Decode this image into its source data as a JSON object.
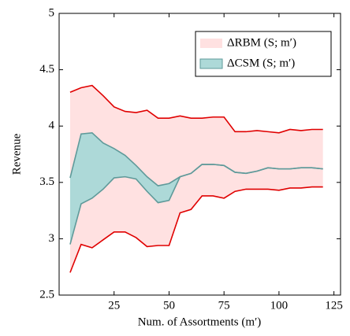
{
  "chart_data": {
    "type": "band",
    "x_label": "Num. of Assortments (m′)",
    "y_label": "Revenue",
    "x": [
      5,
      10,
      15,
      20,
      25,
      30,
      35,
      40,
      45,
      50,
      55,
      60,
      65,
      70,
      75,
      80,
      85,
      90,
      95,
      100,
      105,
      110,
      115,
      120
    ],
    "series": [
      {
        "name": "ΔRBM (S; m′)",
        "color": "#ffe1e1",
        "line_color": "#e00000",
        "upper": [
          4.3,
          4.34,
          4.36,
          4.27,
          4.17,
          4.13,
          4.12,
          4.14,
          4.07,
          4.07,
          4.09,
          4.07,
          4.07,
          4.08,
          4.08,
          3.95,
          3.95,
          3.96,
          3.95,
          3.94,
          3.97,
          3.96,
          3.97,
          3.97
        ],
        "lower": [
          2.7,
          2.95,
          2.92,
          2.99,
          3.06,
          3.06,
          3.01,
          2.93,
          2.94,
          2.94,
          3.23,
          3.26,
          3.38,
          3.38,
          3.36,
          3.42,
          3.44,
          3.44,
          3.44,
          3.43,
          3.45,
          3.45,
          3.46,
          3.46
        ]
      },
      {
        "name": "ΔCSM (S; m′)",
        "color": "#add9d8",
        "line_color": "#5f9a9a",
        "upper": [
          3.54,
          3.93,
          3.94,
          3.85,
          3.8,
          3.74,
          3.65,
          3.55,
          3.47,
          3.49,
          3.55,
          3.58,
          3.66,
          3.66,
          3.65,
          3.59,
          3.58,
          3.6,
          3.63,
          3.62,
          3.62,
          3.63,
          3.63,
          3.62
        ],
        "lower": [
          2.95,
          3.31,
          3.36,
          3.44,
          3.54,
          3.55,
          3.53,
          3.42,
          3.32,
          3.34,
          3.55,
          3.58,
          3.66,
          3.66,
          3.65,
          3.59,
          3.58,
          3.6,
          3.63,
          3.62,
          3.62,
          3.63,
          3.63,
          3.62
        ]
      }
    ],
    "xlim": [
      0,
      128
    ],
    "ylim": [
      2.5,
      5
    ],
    "xticks": [
      25,
      50,
      75,
      100,
      125
    ],
    "yticks": [
      2.5,
      3,
      3.5,
      4,
      4.5,
      5
    ],
    "legend": "top-right"
  }
}
